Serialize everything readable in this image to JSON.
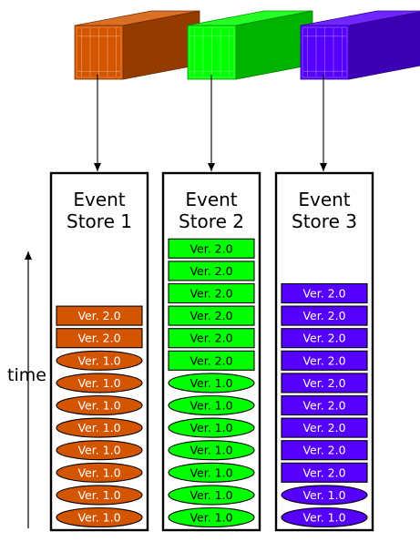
{
  "colors": {
    "store1": "#d45500",
    "store2": "#00ff00",
    "store3": "#5500ff",
    "outline": "#000000",
    "background": "#ffffff"
  },
  "time_label": "time",
  "stores": [
    {
      "title_line1": "Event",
      "title_line2": "Store 1",
      "color_key": "store1",
      "container_icon": "shipping-container-icon",
      "items": [
        {
          "label": "Ver. 2.0",
          "shape": "rect"
        },
        {
          "label": "Ver. 2.0",
          "shape": "rect"
        },
        {
          "label": "Ver. 1.0",
          "shape": "ellipse"
        },
        {
          "label": "Ver. 1.0",
          "shape": "ellipse"
        },
        {
          "label": "Ver. 1.0",
          "shape": "ellipse"
        },
        {
          "label": "Ver. 1.0",
          "shape": "ellipse"
        },
        {
          "label": "Ver. 1.0",
          "shape": "ellipse"
        },
        {
          "label": "Ver. 1.0",
          "shape": "ellipse"
        },
        {
          "label": "Ver. 1.0",
          "shape": "ellipse"
        },
        {
          "label": "Ver. 1.0",
          "shape": "ellipse"
        }
      ]
    },
    {
      "title_line1": "Event",
      "title_line2": "Store 2",
      "color_key": "store2",
      "container_icon": "shipping-container-icon",
      "items": [
        {
          "label": "Ver. 2.0",
          "shape": "rect"
        },
        {
          "label": "Ver. 2.0",
          "shape": "rect"
        },
        {
          "label": "Ver. 2.0",
          "shape": "rect"
        },
        {
          "label": "Ver. 2.0",
          "shape": "rect"
        },
        {
          "label": "Ver. 2.0",
          "shape": "rect"
        },
        {
          "label": "Ver. 2.0",
          "shape": "rect"
        },
        {
          "label": "Ver. 1.0",
          "shape": "ellipse"
        },
        {
          "label": "Ver. 1.0",
          "shape": "ellipse"
        },
        {
          "label": "Ver. 1.0",
          "shape": "ellipse"
        },
        {
          "label": "Ver. 1.0",
          "shape": "ellipse"
        },
        {
          "label": "Ver. 1.0",
          "shape": "ellipse"
        },
        {
          "label": "Ver. 1.0",
          "shape": "ellipse"
        },
        {
          "label": "Ver. 1.0",
          "shape": "ellipse"
        }
      ]
    },
    {
      "title_line1": "Event",
      "title_line2": "Store 3",
      "color_key": "store3",
      "container_icon": "shipping-container-icon",
      "items": [
        {
          "label": "Ver. 2.0",
          "shape": "rect"
        },
        {
          "label": "Ver. 2.0",
          "shape": "rect"
        },
        {
          "label": "Ver. 2.0",
          "shape": "rect"
        },
        {
          "label": "Ver. 2.0",
          "shape": "rect"
        },
        {
          "label": "Ver. 2.0",
          "shape": "rect"
        },
        {
          "label": "Ver. 2.0",
          "shape": "rect"
        },
        {
          "label": "Ver. 2.0",
          "shape": "rect"
        },
        {
          "label": "Ver. 2.0",
          "shape": "rect"
        },
        {
          "label": "Ver. 2.0",
          "shape": "rect"
        },
        {
          "label": "Ver. 1.0",
          "shape": "ellipse"
        },
        {
          "label": "Ver. 1.0",
          "shape": "ellipse"
        }
      ]
    }
  ]
}
